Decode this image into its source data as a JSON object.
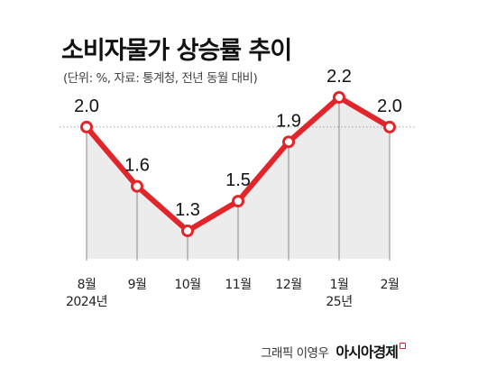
{
  "title": "소비자물가 상승률 추이",
  "subtitle": "(단위: %, 자료: 통계청, 전년 동월 대비)",
  "credit": {
    "text": "그래픽 이영우",
    "brand": "아시아경제"
  },
  "colors": {
    "line": "#e1252b",
    "marker_fill": "#ffffff",
    "area": "#ececec",
    "dotted_ref": "#9a9a9a",
    "brand_mark": "#d61f26"
  },
  "chart_data": {
    "type": "line",
    "categories": [
      "8월\n2024년",
      "9월",
      "10월",
      "11월",
      "12월",
      "1월\n25년",
      "2월"
    ],
    "values": [
      2.0,
      1.6,
      1.3,
      1.5,
      1.9,
      2.2,
      2.0
    ],
    "value_labels": [
      "2.0",
      "1.6",
      "1.3",
      "1.5",
      "1.9",
      "2.2",
      "2.0"
    ],
    "reference_line": 2.0,
    "ylim": [
      1.3,
      2.2
    ],
    "grid": false,
    "area_fill": true
  }
}
